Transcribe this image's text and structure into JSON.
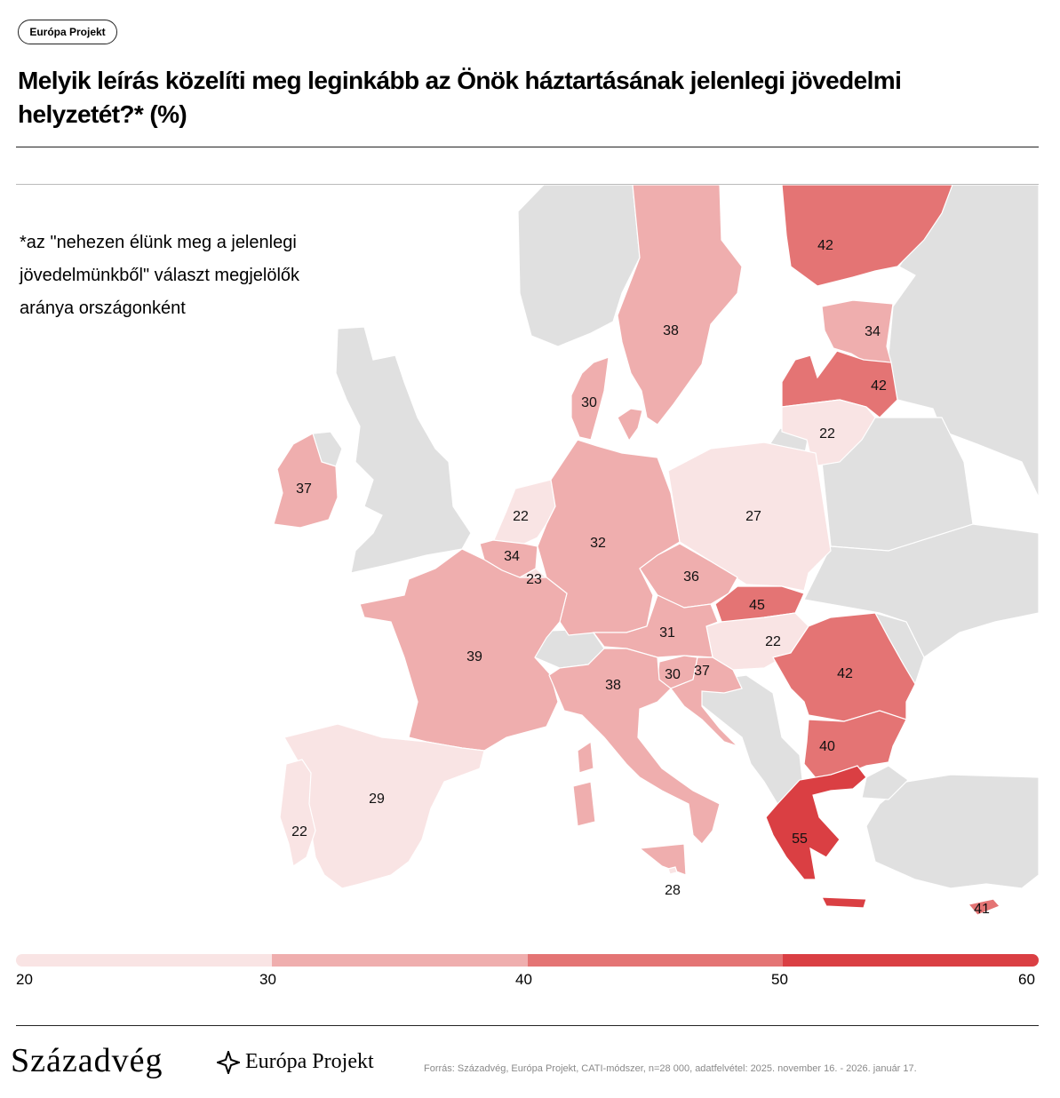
{
  "badge": "Európa Projekt",
  "title": "Melyik leírás közelíti meg leginkább az Önök háztartásának jelenlegi jövedelmi helyzetét?* (%)",
  "note_lines": [
    "*az \"nehezen élünk meg a jelenlegi",
    "jövedelmünkből\" választ megjelölők",
    "aránya országonként"
  ],
  "colors": {
    "bin_20_30": "#f9e4e4",
    "bin_30_40": "#efaeae",
    "bin_40_50": "#e47474",
    "bin_50_60": "#da3f43",
    "no_data": "#e0e0e0",
    "border": "#ffffff"
  },
  "legend": {
    "ticks": [
      "20",
      "30",
      "40",
      "50",
      "60"
    ],
    "bins": [
      {
        "from": 20,
        "to": 30,
        "color": "#f9e4e4"
      },
      {
        "from": 30,
        "to": 40,
        "color": "#efaeae"
      },
      {
        "from": 40,
        "to": 50,
        "color": "#e47474"
      },
      {
        "from": 50,
        "to": 60,
        "color": "#da3f43"
      }
    ]
  },
  "map_data": {
    "unit": "%",
    "regions": [
      {
        "id": "sweden",
        "value": 38
      },
      {
        "id": "finland",
        "value": 42
      },
      {
        "id": "estonia",
        "value": 34
      },
      {
        "id": "latvia",
        "value": 42
      },
      {
        "id": "lithuania",
        "value": 22
      },
      {
        "id": "denmark",
        "value": 30
      },
      {
        "id": "ireland",
        "value": 37
      },
      {
        "id": "netherlands",
        "value": 22
      },
      {
        "id": "belgium",
        "value": 34
      },
      {
        "id": "luxembourg",
        "value": 23
      },
      {
        "id": "germany",
        "value": 32
      },
      {
        "id": "poland",
        "value": 27
      },
      {
        "id": "czechia",
        "value": 36
      },
      {
        "id": "slovakia",
        "value": 45
      },
      {
        "id": "hungary",
        "value": 22
      },
      {
        "id": "austria",
        "value": 31
      },
      {
        "id": "slovenia",
        "value": 30
      },
      {
        "id": "croatia",
        "value": 37
      },
      {
        "id": "france",
        "value": 39
      },
      {
        "id": "italy",
        "value": 38
      },
      {
        "id": "romania",
        "value": 42
      },
      {
        "id": "bulgaria",
        "value": 40
      },
      {
        "id": "greece",
        "value": 55
      },
      {
        "id": "spain",
        "value": 29
      },
      {
        "id": "portugal",
        "value": 22
      },
      {
        "id": "malta",
        "value": 28
      },
      {
        "id": "cyprus",
        "value": 41
      }
    ]
  },
  "footer": {
    "brand_primary": "Századvég",
    "brand_secondary": "Európa Projekt",
    "source": "Forrás: Századvég, Európa Projekt, CATI-módszer, n=28 000, adatfelvétel: 2025. november 16. - 2026. január 17."
  }
}
